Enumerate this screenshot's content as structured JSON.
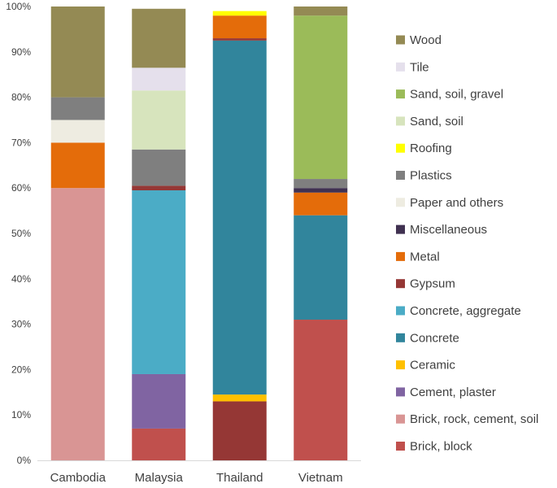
{
  "chart_data": {
    "type": "stacked_bar_100",
    "categories": [
      "Cambodia",
      "Malaysia",
      "Thailand",
      "Vietnam"
    ],
    "ylim": [
      0,
      100
    ],
    "y_ticks": [
      "0%",
      "10%",
      "20%",
      "30%",
      "40%",
      "50%",
      "60%",
      "70%",
      "80%",
      "90%",
      "100%"
    ],
    "legend_position": "right",
    "series": [
      {
        "name": "Brick, block",
        "color": "#c0504d",
        "values": [
          0,
          7,
          0,
          31
        ]
      },
      {
        "name": "Brick, rock, cement, soil",
        "color": "#d99594",
        "values": [
          60,
          0,
          0,
          0
        ]
      },
      {
        "name": "Cement, plaster",
        "color": "#8064a2",
        "values": [
          0,
          12,
          0,
          0
        ]
      },
      {
        "name": "Ceramic",
        "color": "#ffc000",
        "values": [
          0,
          0,
          1.5,
          0
        ]
      },
      {
        "name": "Concrete",
        "color": "#31859c",
        "values": [
          0,
          0,
          78,
          23
        ]
      },
      {
        "name": "Concrete, aggregate",
        "color": "#4bacc6",
        "values": [
          0,
          40.5,
          0,
          0
        ]
      },
      {
        "name": "Gypsum",
        "color": "#953735",
        "values": [
          0,
          1,
          0.5,
          0
        ]
      },
      {
        "name": "Metal",
        "color": "#e46c0a",
        "values": [
          10,
          0,
          5,
          5
        ]
      },
      {
        "name": "Miscellaneous",
        "color": "#403151",
        "values": [
          0,
          0,
          0,
          1
        ]
      },
      {
        "name": "Paper and others",
        "color": "#eeece1",
        "values": [
          5,
          0,
          0,
          0
        ]
      },
      {
        "name": "Plastics",
        "color": "#7f7f7f",
        "values": [
          5,
          8,
          0,
          2
        ]
      },
      {
        "name": "Roofing",
        "color": "#ffff00",
        "values": [
          0,
          0,
          1,
          0
        ]
      },
      {
        "name": "Sand, soil",
        "color": "#d7e4bd",
        "values": [
          0,
          13,
          0,
          0
        ]
      },
      {
        "name": "Sand, soil, gravel",
        "color": "#9bbb59",
        "values": [
          0,
          0,
          0,
          36
        ]
      },
      {
        "name": "Tile",
        "color": "#e5e0ec",
        "values": [
          0,
          5,
          0,
          0
        ]
      },
      {
        "name": "Wood",
        "color": "#948a54",
        "values": [
          20,
          13,
          0,
          2
        ]
      }
    ],
    "grid": false,
    "thailand_base_segment": {
      "name": "",
      "color": "#953735",
      "value": 13
    }
  }
}
